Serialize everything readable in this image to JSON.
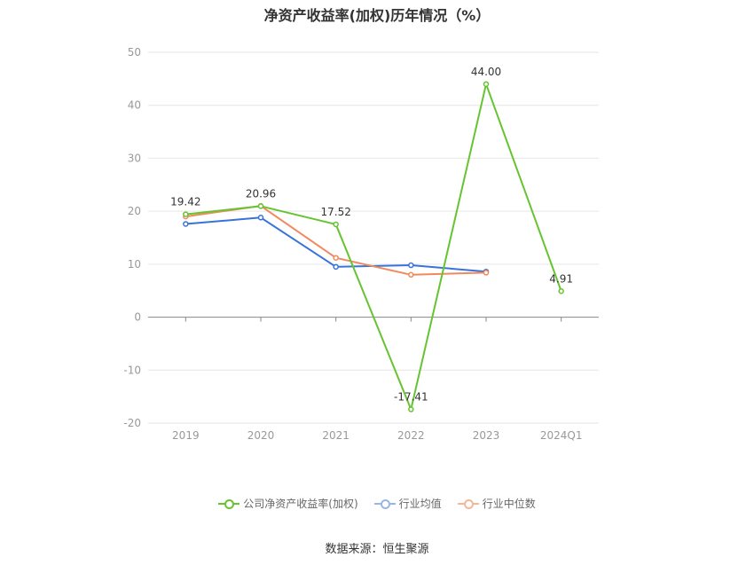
{
  "chart_data": {
    "type": "line",
    "title": "净资产收益率(加权)历年情况（%）",
    "categories": [
      "2019",
      "2020",
      "2021",
      "2022",
      "2023",
      "2024Q1"
    ],
    "ylim": [
      -20,
      50
    ],
    "yticks": [
      -20,
      -10,
      0,
      10,
      20,
      30,
      40,
      50
    ],
    "grid": true,
    "legend_position": "bottom",
    "series": [
      {
        "name": "公司净资产收益率(加权)",
        "color": "#66c431",
        "values": [
          19.42,
          20.96,
          17.52,
          -17.41,
          44.0,
          4.91
        ],
        "labels": [
          "19.42",
          "20.96",
          "17.52",
          "-17.41",
          "44.00",
          "4.91"
        ]
      },
      {
        "name": "行业均值",
        "color": "#3873d9",
        "values": [
          17.6,
          18.8,
          9.5,
          9.8,
          8.6,
          null
        ]
      },
      {
        "name": "行业中位数",
        "color": "#f08a5d",
        "values": [
          19.0,
          21.0,
          11.2,
          8.0,
          8.4,
          null
        ]
      }
    ]
  },
  "footer": {
    "source": "数据来源：恒生聚源"
  }
}
